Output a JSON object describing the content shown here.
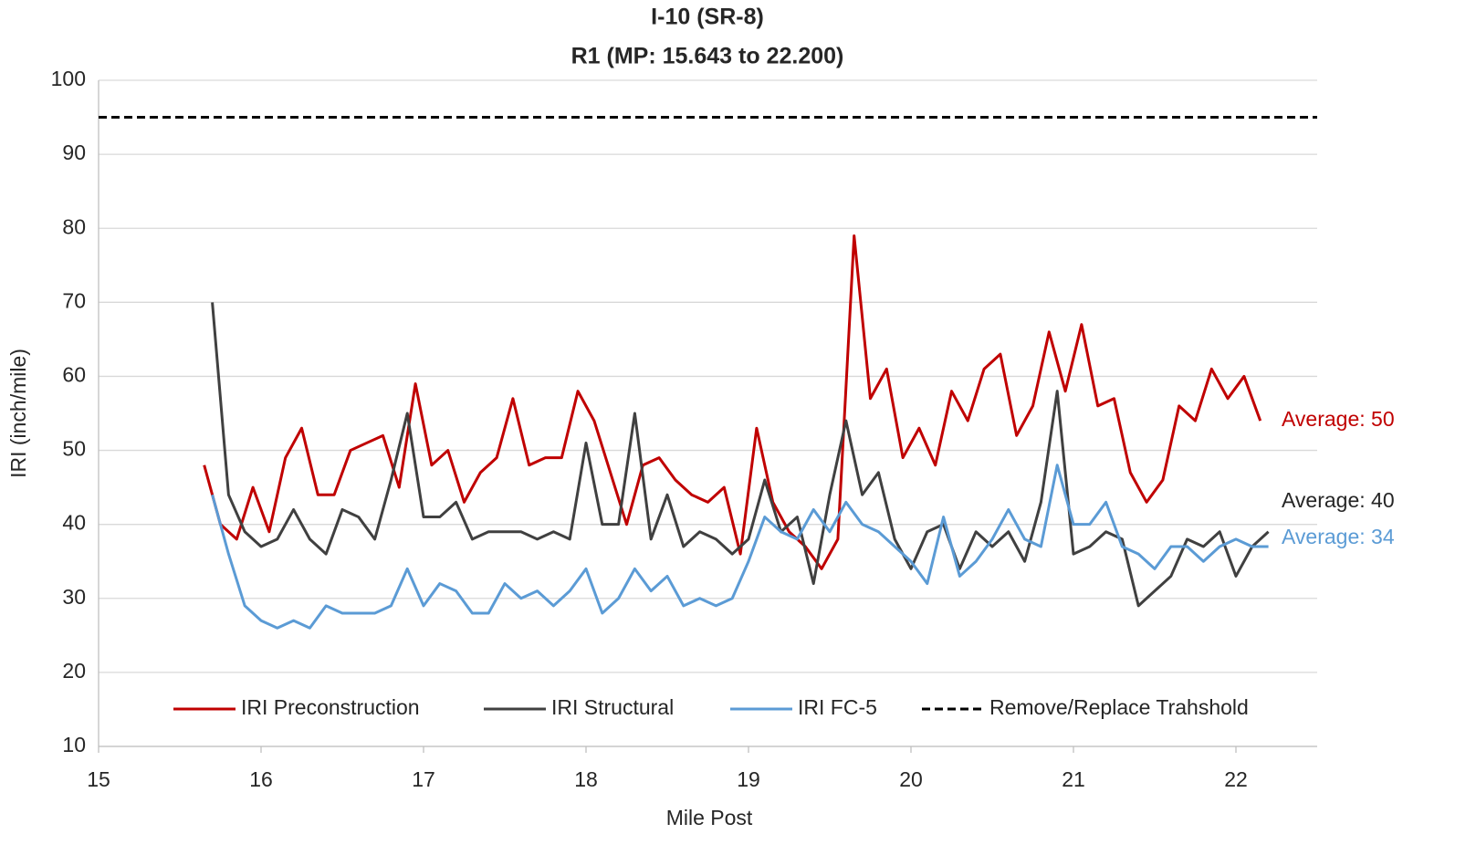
{
  "chart_data": {
    "type": "line",
    "title": "I-10 (SR-8)",
    "subtitle": "R1 (MP: 15.643 to 22.200)",
    "x_label": "Mile Post",
    "y_label": "IRI (inch/mile)",
    "xlim": [
      15,
      22.5
    ],
    "xticks": [
      15,
      16,
      17,
      18,
      19,
      20,
      21,
      22
    ],
    "ylim": [
      10,
      100
    ],
    "yticks": [
      10,
      20,
      30,
      40,
      50,
      60,
      70,
      80,
      90,
      100
    ],
    "grid": true,
    "legend": "bottom",
    "series": [
      {
        "name": "IRI Preconstruction",
        "color": "#c00000",
        "x": [
          15.65,
          15.75,
          15.85,
          15.95,
          16.05,
          16.15,
          16.25,
          16.35,
          16.45,
          16.55,
          16.65,
          16.75,
          16.85,
          16.95,
          17.05,
          17.15,
          17.25,
          17.35,
          17.45,
          17.55,
          17.65,
          17.75,
          17.85,
          17.95,
          18.05,
          18.15,
          18.25,
          18.35,
          18.45,
          18.55,
          18.65,
          18.75,
          18.85,
          18.95,
          19.05,
          19.15,
          19.25,
          19.35,
          19.45,
          19.55,
          19.65,
          19.75,
          19.85,
          19.95,
          20.05,
          20.15,
          20.25,
          20.35,
          20.45,
          20.55,
          20.65,
          20.75,
          20.85,
          20.95,
          21.05,
          21.15,
          21.25,
          21.35,
          21.45,
          21.55,
          21.65,
          21.75,
          21.85,
          21.95,
          22.05,
          22.15
        ],
        "values": [
          48,
          40,
          38,
          45,
          39,
          49,
          53,
          44,
          44,
          50,
          51,
          52,
          45,
          59,
          48,
          50,
          43,
          47,
          49,
          57,
          48,
          49,
          49,
          58,
          54,
          47,
          40,
          48,
          49,
          46,
          44,
          43,
          45,
          36,
          53,
          43,
          39,
          37,
          34,
          38,
          79,
          57,
          61,
          49,
          53,
          48,
          58,
          54,
          61,
          63,
          52,
          56,
          66,
          58,
          67,
          56,
          57,
          47,
          43,
          46,
          56,
          54,
          61,
          57,
          60,
          54
        ]
      },
      {
        "name": "IRI Structural",
        "color": "#404040",
        "x": [
          15.7,
          15.8,
          15.9,
          16,
          16.1,
          16.2,
          16.3,
          16.4,
          16.5,
          16.6,
          16.7,
          16.8,
          16.9,
          17,
          17.1,
          17.2,
          17.3,
          17.4,
          17.5,
          17.6,
          17.7,
          17.8,
          17.9,
          18,
          18.1,
          18.2,
          18.3,
          18.4,
          18.5,
          18.6,
          18.7,
          18.8,
          18.9,
          19,
          19.1,
          19.2,
          19.3,
          19.4,
          19.5,
          19.6,
          19.7,
          19.8,
          19.9,
          20,
          20.1,
          20.2,
          20.3,
          20.4,
          20.5,
          20.6,
          20.7,
          20.8,
          20.9,
          21,
          21.1,
          21.2,
          21.3,
          21.4,
          21.5,
          21.6,
          21.7,
          21.8,
          21.9,
          22,
          22.1,
          22.2
        ],
        "values": [
          70,
          44,
          39,
          37,
          38,
          42,
          38,
          36,
          42,
          41,
          38,
          46,
          55,
          41,
          41,
          43,
          38,
          39,
          39,
          39,
          38,
          39,
          38,
          51,
          40,
          40,
          55,
          38,
          44,
          37,
          39,
          38,
          36,
          38,
          46,
          39,
          41,
          32,
          44,
          54,
          44,
          47,
          38,
          34,
          39,
          40,
          34,
          39,
          37,
          39,
          35,
          43,
          58,
          36,
          37,
          39,
          38,
          29,
          31,
          33,
          38,
          37,
          39,
          33,
          37,
          39
        ]
      },
      {
        "name": "IRI FC-5",
        "color": "#5b9bd5",
        "x": [
          15.7,
          15.8,
          15.9,
          16,
          16.1,
          16.2,
          16.3,
          16.4,
          16.5,
          16.6,
          16.7,
          16.8,
          16.9,
          17,
          17.1,
          17.2,
          17.3,
          17.4,
          17.5,
          17.6,
          17.7,
          17.8,
          17.9,
          18,
          18.1,
          18.2,
          18.3,
          18.4,
          18.5,
          18.6,
          18.7,
          18.8,
          18.9,
          19,
          19.1,
          19.2,
          19.3,
          19.4,
          19.5,
          19.6,
          19.7,
          19.8,
          19.9,
          20,
          20.1,
          20.2,
          20.3,
          20.4,
          20.5,
          20.6,
          20.7,
          20.8,
          20.9,
          21,
          21.1,
          21.2,
          21.3,
          21.4,
          21.5,
          21.6,
          21.7,
          21.8,
          21.9,
          22,
          22.1,
          22.2
        ],
        "values": [
          44,
          36,
          29,
          27,
          26,
          27,
          26,
          29,
          28,
          28,
          28,
          29,
          34,
          29,
          32,
          31,
          28,
          28,
          32,
          30,
          31,
          29,
          31,
          34,
          28,
          30,
          34,
          31,
          33,
          29,
          30,
          29,
          30,
          35,
          41,
          39,
          38,
          42,
          39,
          43,
          40,
          39,
          37,
          35,
          32,
          41,
          33,
          35,
          38,
          42,
          38,
          37,
          48,
          40,
          40,
          43,
          37,
          36,
          34,
          37,
          37,
          35,
          37,
          38,
          37,
          37
        ]
      },
      {
        "name": "Remove/Replace Trahshold",
        "color": "#000000",
        "dashed": true,
        "value": 95
      }
    ],
    "annotations": [
      {
        "text": "Average: 50",
        "color": "#c00000"
      },
      {
        "text": "Average: 40",
        "color": "#262626"
      },
      {
        "text": "Average: 34",
        "color": "#5b9bd5"
      }
    ]
  }
}
